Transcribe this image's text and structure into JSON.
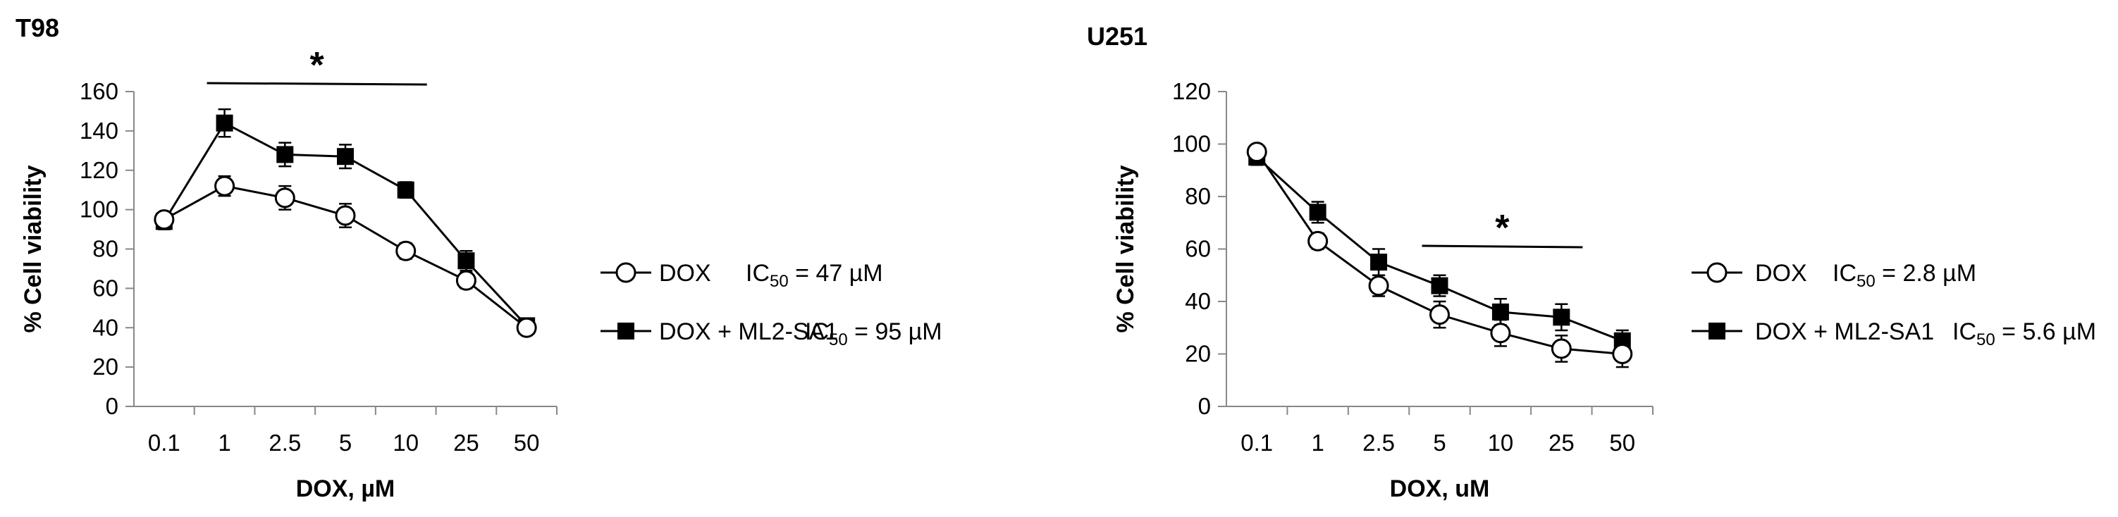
{
  "chart_data": [
    {
      "type": "line",
      "title": "T98",
      "xlabel": "DOX, µM",
      "ylabel": "% Cell viability",
      "categories": [
        "0.1",
        "1",
        "2.5",
        "5",
        "10",
        "25",
        "50"
      ],
      "ylim": [
        0,
        160
      ],
      "yticks": [
        0,
        20,
        40,
        60,
        80,
        100,
        120,
        140,
        160
      ],
      "series": [
        {
          "name": "DOX",
          "marker": "open-circle",
          "values": [
            95,
            112,
            106,
            97,
            79,
            64,
            40
          ],
          "errors": [
            3,
            5,
            6,
            6,
            4,
            4,
            3
          ]
        },
        {
          "name": "DOX + ML2-SA1",
          "marker": "filled-square",
          "values": [
            94,
            144,
            128,
            127,
            110,
            74,
            41
          ],
          "errors": [
            4,
            7,
            6,
            6,
            4,
            5,
            3
          ]
        }
      ],
      "legend": [
        {
          "series": "DOX",
          "ic_label": "IC",
          "ic_sub": "50",
          "ic_value": " = 47 µM"
        },
        {
          "series": "DOX + ML2-SA1",
          "ic_label": "IC",
          "ic_sub": "50",
          "ic_value": " = 95 µM"
        }
      ],
      "significance": {
        "symbol": "*",
        "from": "1",
        "to": "10"
      }
    },
    {
      "type": "line",
      "title": "U251",
      "xlabel": "DOX, uM",
      "ylabel": "% Cell viability",
      "categories": [
        "0.1",
        "1",
        "2.5",
        "5",
        "10",
        "25",
        "50"
      ],
      "ylim": [
        0,
        120
      ],
      "yticks": [
        0,
        20,
        40,
        60,
        80,
        100,
        120
      ],
      "series": [
        {
          "name": "DOX",
          "marker": "open-circle",
          "values": [
            97,
            63,
            46,
            35,
            28,
            22,
            20
          ],
          "errors": [
            2,
            3,
            4,
            5,
            5,
            5,
            5
          ]
        },
        {
          "name": "DOX + ML2-SA1",
          "marker": "filled-square",
          "values": [
            95,
            74,
            55,
            46,
            36,
            34,
            25
          ],
          "errors": [
            3,
            4,
            5,
            4,
            5,
            5,
            4
          ]
        }
      ],
      "legend": [
        {
          "series": "DOX",
          "ic_label": "IC",
          "ic_sub": "50",
          "ic_value": " = 2.8 µM"
        },
        {
          "series": "DOX + ML2-SA1",
          "ic_label": "IC",
          "ic_sub": "50",
          "ic_value": " = 5.6 µM"
        }
      ],
      "significance": {
        "symbol": "*",
        "from": "5",
        "to": "25"
      }
    }
  ]
}
